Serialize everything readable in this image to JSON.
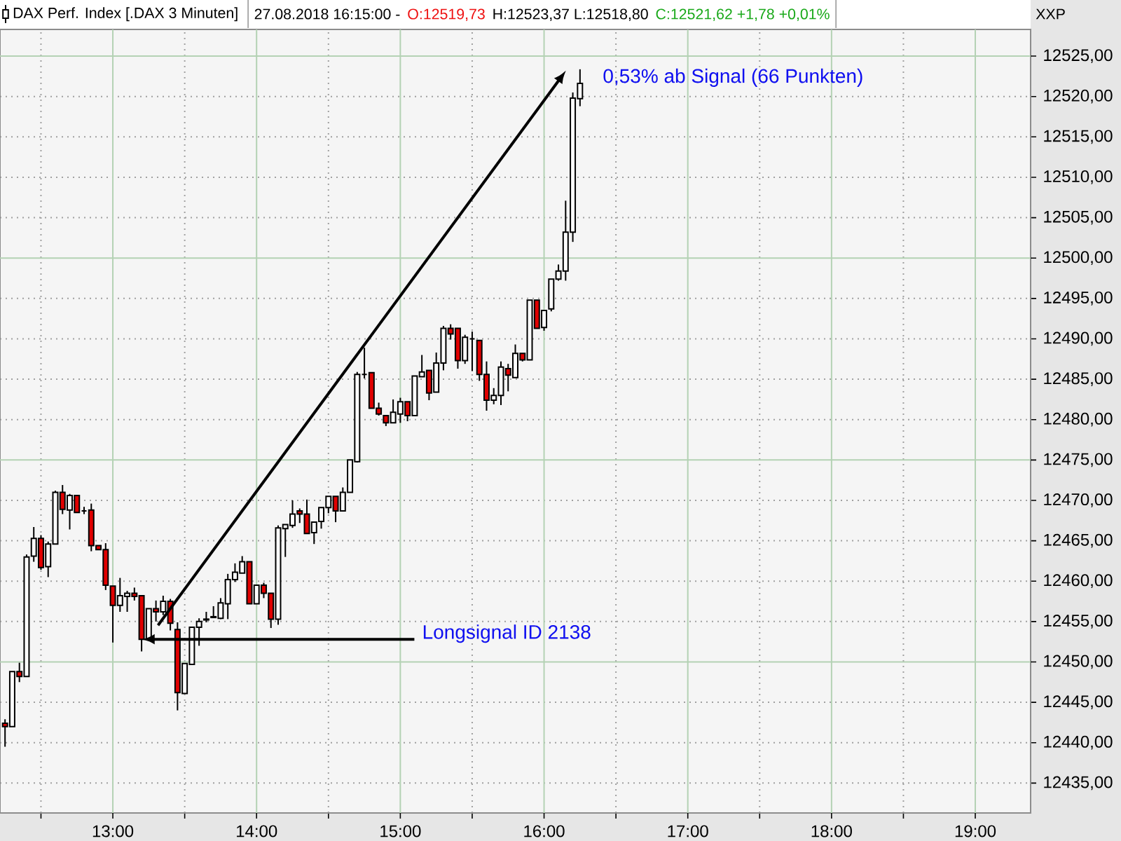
{
  "chart_data": {
    "type": "candlestick",
    "title": "27.08.2018 16:15:00 -",
    "annotations": [
      "O:12519,73",
      "H:12523,37 L:12518,80",
      "C:12521,62 +1,78 +0,01%",
      "XXP",
      {
        "text": "0,53% ab Signal (66 Punkten)",
        "x": 16.25,
        "y": 12523.37
      },
      {
        "text": "Longsignal ID 2138",
        "x": 13.2,
        "y": 12452.8
      }
    ],
    "x": [
      12.25,
      12.3,
      12.35,
      12.4,
      12.45,
      12.5,
      12.55,
      12.6,
      12.65,
      12.7,
      12.75,
      12.8,
      12.85,
      12.9,
      12.95,
      13,
      13.05,
      13.1,
      13.15,
      13.2,
      13.25,
      13.3,
      13.35,
      13.4,
      13.45,
      13.5,
      13.55,
      13.6,
      13.65,
      13.7,
      13.75,
      13.8,
      13.85,
      13.9,
      13.95,
      14,
      14.05,
      14.1,
      14.15,
      14.2,
      14.25,
      14.3,
      14.35,
      14.4,
      14.45,
      14.5,
      14.55,
      14.6,
      14.65,
      14.7,
      14.75,
      14.8,
      14.85,
      14.9,
      14.95,
      15,
      15.05,
      15.1,
      15.15,
      15.2,
      15.25,
      15.3,
      15.35,
      15.4,
      15.45,
      15.5,
      15.55,
      15.6,
      15.65,
      15.7,
      15.75,
      15.8,
      15.85,
      15.9,
      15.95,
      16,
      16.05,
      16.1,
      16.15,
      16.2,
      16.25
    ],
    "series": [
      {
        "name": "DAX Perf. Index [.DAX 3 Minuten]",
        "ohlc": [
          [
            12442.4,
            12442.9,
            12439.5,
            12442.0
          ],
          [
            12442.0,
            12448.8,
            12442.0,
            12448.8
          ],
          [
            12448.8,
            12449.9,
            12447.5,
            12448.2
          ],
          [
            12448.2,
            12463.3,
            12448.2,
            12463.0
          ],
          [
            12463.1,
            12466.7,
            12462.4,
            12465.3
          ],
          [
            12465.3,
            12465.7,
            12461.4,
            12461.7
          ],
          [
            12461.8,
            12464.9,
            12460.5,
            12464.6
          ],
          [
            12464.6,
            12471.2,
            12464.6,
            12471.0
          ],
          [
            12471.0,
            12471.9,
            12468.3,
            12468.9
          ],
          [
            12468.8,
            12470.8,
            12466.4,
            12470.6
          ],
          [
            12470.6,
            12470.6,
            12468.5,
            12468.5
          ],
          [
            12468.7,
            12469.2,
            12468.3,
            12468.7
          ],
          [
            12468.8,
            12469.6,
            12463.7,
            12464.4
          ],
          [
            12464.4,
            12464.4,
            12463.9,
            12463.9
          ],
          [
            12463.9,
            12464.7,
            12458.9,
            12459.5
          ],
          [
            12459.4,
            12459.4,
            12452.4,
            12457.0
          ],
          [
            12457.0,
            12460.4,
            12456.2,
            12458.2
          ],
          [
            12458.1,
            12458.8,
            12456.2,
            12458.5
          ],
          [
            12458.5,
            12459.2,
            12457.6,
            12458.1
          ],
          [
            12458.2,
            12458.2,
            12451.3,
            12452.8
          ],
          [
            12452.8,
            12456.6,
            12452.8,
            12456.6
          ],
          [
            12456.6,
            12457.6,
            12455.0,
            12456.2
          ],
          [
            12456.2,
            12458.2,
            12455.8,
            12457.5
          ],
          [
            12457.5,
            12457.8,
            12453.9,
            12454.8
          ],
          [
            12454.0,
            12454.9,
            12444.0,
            12446.2
          ],
          [
            12446.1,
            12449.8,
            12446.1,
            12449.8
          ],
          [
            12449.7,
            12454.3,
            12449.7,
            12454.3
          ],
          [
            12454.3,
            12455.4,
            12452.0,
            12455.0
          ],
          [
            12455.2,
            12456.2,
            12454.9,
            12455.3
          ],
          [
            12455.5,
            12456.9,
            12455.5,
            12455.6
          ],
          [
            12455.4,
            12457.9,
            12455.3,
            12457.3
          ],
          [
            12457.2,
            12460.9,
            12455.3,
            12460.2
          ],
          [
            12460.2,
            12462.2,
            12459.9,
            12461.1
          ],
          [
            12461.0,
            12463.1,
            12461.0,
            12462.4
          ],
          [
            12462.4,
            12462.4,
            12457.2,
            12457.2
          ],
          [
            12457.2,
            12459.5,
            12457.2,
            12459.5
          ],
          [
            12459.5,
            12459.8,
            12457.9,
            12458.5
          ],
          [
            12458.5,
            12458.5,
            12454.2,
            12455.3
          ],
          [
            12455.3,
            12466.9,
            12454.6,
            12466.6
          ],
          [
            12466.5,
            12467.0,
            12463.0,
            12467.0
          ],
          [
            12466.9,
            12470.0,
            12466.6,
            12468.3
          ],
          [
            12468.7,
            12469.0,
            12467.2,
            12468.3
          ],
          [
            12468.3,
            12470.1,
            12465.9,
            12465.9
          ],
          [
            12466.0,
            12467.3,
            12464.6,
            12467.3
          ],
          [
            12467.4,
            12469.1,
            12466.5,
            12469.1
          ],
          [
            12469.1,
            12470.5,
            12468.4,
            12470.5
          ],
          [
            12470.5,
            12470.5,
            12467.3,
            12468.7
          ],
          [
            12468.7,
            12471.6,
            12468.7,
            12471.0
          ],
          [
            12471.0,
            12475.0,
            12471.0,
            12475.0
          ],
          [
            12474.8,
            12485.9,
            12474.7,
            12485.6
          ],
          [
            12485.6,
            12488.9,
            12485.1,
            12485.6
          ],
          [
            12485.8,
            12485.8,
            12481.4,
            12481.4
          ],
          [
            12481.4,
            12482.1,
            12480.5,
            12480.7
          ],
          [
            12480.5,
            12480.5,
            12479.2,
            12479.6
          ],
          [
            12479.6,
            12482.5,
            12479.6,
            12480.9
          ],
          [
            12480.7,
            12482.7,
            12479.6,
            12482.2
          ],
          [
            12482.2,
            12482.2,
            12479.8,
            12480.5
          ],
          [
            12480.5,
            12485.4,
            12480.5,
            12485.4
          ],
          [
            12485.3,
            12488.0,
            12485.3,
            12485.9
          ],
          [
            12486.1,
            12486.1,
            12482.4,
            12483.3
          ],
          [
            12483.4,
            12488.3,
            12483.4,
            12487.0
          ],
          [
            12487.0,
            12491.6,
            12486.1,
            12491.3
          ],
          [
            12491.3,
            12491.8,
            12489.9,
            12490.6
          ],
          [
            12491.3,
            12491.3,
            12486.3,
            12487.3
          ],
          [
            12487.3,
            12490.5,
            12486.9,
            12490.2
          ],
          [
            12490.0,
            12490.9,
            12486.0,
            12490.0
          ],
          [
            12489.8,
            12489.8,
            12484.8,
            12485.6
          ],
          [
            12485.6,
            12487.2,
            12481.1,
            12482.4
          ],
          [
            12482.4,
            12483.9,
            12481.9,
            12483.0
          ],
          [
            12483.0,
            12487.2,
            12481.8,
            12486.5
          ],
          [
            12486.3,
            12486.9,
            12483.5,
            12485.5
          ],
          [
            12485.2,
            12489.3,
            12485.2,
            12488.2
          ],
          [
            12488.2,
            12488.2,
            12487.2,
            12487.4
          ],
          [
            12487.4,
            12494.8,
            12487.4,
            12494.8
          ],
          [
            12494.8,
            12494.8,
            12491.3,
            12491.3
          ],
          [
            12491.4,
            12493.5,
            12491.0,
            12493.5
          ],
          [
            12493.7,
            12497.4,
            12493.4,
            12497.4
          ],
          [
            12497.4,
            12499.2,
            12497.2,
            12498.4
          ],
          [
            12498.4,
            12507.1,
            12497.2,
            12503.2
          ],
          [
            12503.2,
            12520.5,
            12502.0,
            12519.8
          ],
          [
            12519.73,
            12523.37,
            12518.8,
            12521.62
          ]
        ],
        "colors": [
          "#e00000",
          "#ffffff",
          "#e00000",
          "#ffffff",
          "#ffffff",
          "#e00000",
          "#ffffff",
          "#ffffff",
          "#e00000",
          "#ffffff",
          "#e00000",
          "#000000",
          "#e00000",
          "#e00000",
          "#e00000",
          "#e00000",
          "#ffffff",
          "#ffffff",
          "#e00000",
          "#e00000",
          "#ffffff",
          "#e00000",
          "#ffffff",
          "#e00000",
          "#e00000",
          "#ffffff",
          "#ffffff",
          "#ffffff",
          "#ffffff",
          "#ffffff",
          "#ffffff",
          "#ffffff",
          "#ffffff",
          "#ffffff",
          "#e00000",
          "#ffffff",
          "#e00000",
          "#e00000",
          "#ffffff",
          "#ffffff",
          "#ffffff",
          "#e00000",
          "#e00000",
          "#ffffff",
          "#ffffff",
          "#ffffff",
          "#e00000",
          "#ffffff",
          "#ffffff",
          "#ffffff",
          "#000000",
          "#e00000",
          "#e00000",
          "#e00000",
          "#ffffff",
          "#ffffff",
          "#e00000",
          "#ffffff",
          "#ffffff",
          "#e00000",
          "#ffffff",
          "#ffffff",
          "#e00000",
          "#e00000",
          "#ffffff",
          "#000000",
          "#e00000",
          "#e00000",
          "#ffffff",
          "#ffffff",
          "#e00000",
          "#ffffff",
          "#e00000",
          "#ffffff",
          "#e00000",
          "#ffffff",
          "#ffffff",
          "#ffffff",
          "#ffffff",
          "#ffffff",
          "#ffffff"
        ]
      }
    ],
    "xlim": [
      12.215,
      19.385
    ],
    "ylim": [
      12431.3,
      12528.3
    ],
    "xticks": [
      {
        "value": 12.5,
        "label": null
      },
      {
        "value": 13,
        "label": "13:00"
      },
      {
        "value": 13.5,
        "label": null
      },
      {
        "value": 14,
        "label": "14:00"
      },
      {
        "value": 14.5,
        "label": null
      },
      {
        "value": 15,
        "label": "15:00"
      },
      {
        "value": 15.5,
        "label": null
      },
      {
        "value": 16,
        "label": "16:00"
      },
      {
        "value": 16.5,
        "label": null
      },
      {
        "value": 17,
        "label": "17:00"
      },
      {
        "value": 17.5,
        "label": null
      },
      {
        "value": 18,
        "label": "18:00"
      },
      {
        "value": 18.5,
        "label": null
      },
      {
        "value": 19,
        "label": "19:00"
      }
    ],
    "yticks": [
      {
        "value": 12435,
        "label": "12435,00"
      },
      {
        "value": 12440,
        "label": "12440,00"
      },
      {
        "value": 12445,
        "label": "12445,00"
      },
      {
        "value": 12450,
        "label": "12450,00"
      },
      {
        "value": 12455,
        "label": "12455,00"
      },
      {
        "value": 12460,
        "label": "12460,00"
      },
      {
        "value": 12465,
        "label": "12465,00"
      },
      {
        "value": 12470,
        "label": "12470,00"
      },
      {
        "value": 12475,
        "label": "12475,00"
      },
      {
        "value": 12480,
        "label": "12480,00"
      },
      {
        "value": 12485,
        "label": "12485,00"
      },
      {
        "value": 12490,
        "label": "12490,00"
      },
      {
        "value": 12495,
        "label": "12495,00"
      },
      {
        "value": 12500,
        "label": "12500,00"
      },
      {
        "value": 12505,
        "label": "12505,00"
      },
      {
        "value": 12510,
        "label": "12510,00"
      },
      {
        "value": 12515,
        "label": "12515,00"
      },
      {
        "value": 12520,
        "label": "12520,00"
      },
      {
        "value": 12525,
        "label": "12525,00"
      }
    ],
    "grid": true,
    "legend": "top left"
  }
}
